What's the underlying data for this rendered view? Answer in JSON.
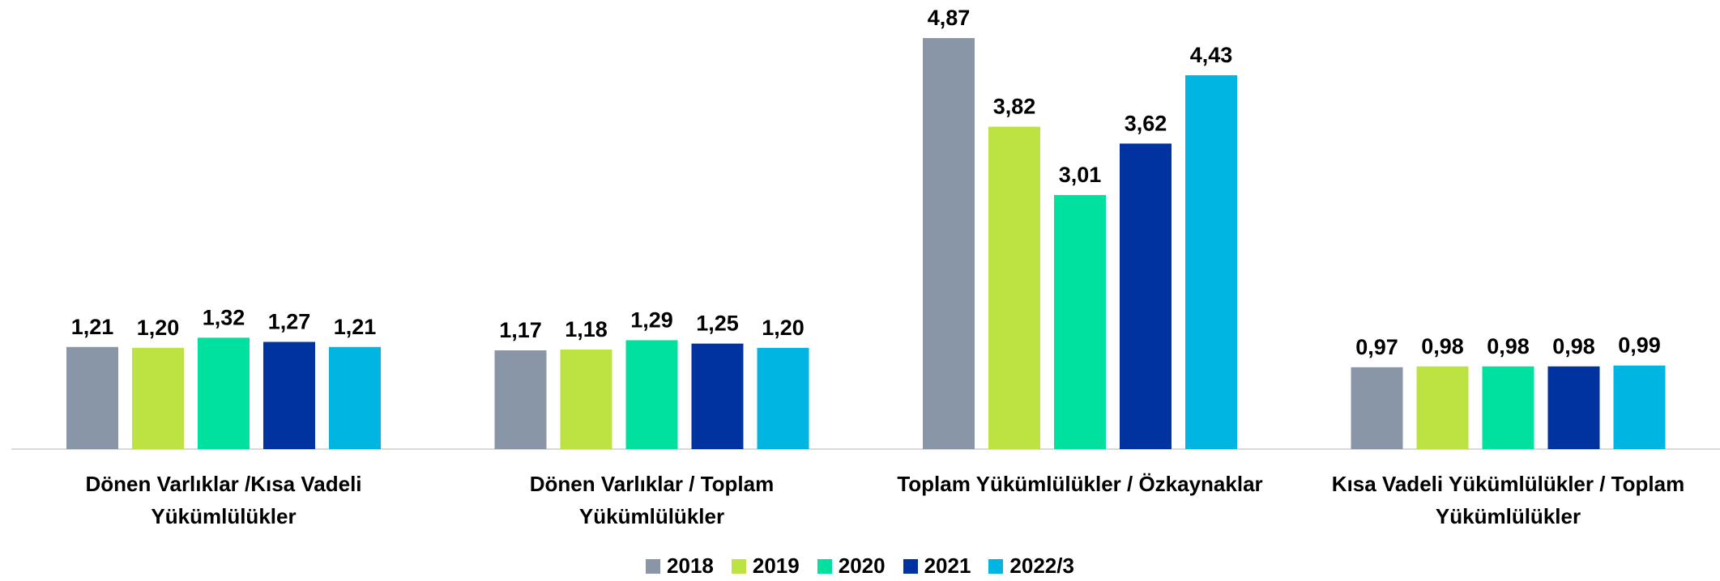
{
  "chart_data": {
    "type": "bar",
    "categories": [
      "Dönen Varlıklar /Kısa Vadeli\nYükümlülükler",
      "Dönen Varlıklar / Toplam\nYükümlülükler",
      "Toplam Yükümlülükler / Özkaynaklar",
      "Kısa Vadeli Yükümlülükler / Toplam\nYükümlülükler"
    ],
    "series": [
      {
        "name": "2018",
        "color": "#8896a8",
        "values": [
          1.21,
          1.17,
          4.87,
          0.97
        ],
        "value_labels": [
          "1,21",
          "1,17",
          "4,87",
          "0,97"
        ]
      },
      {
        "name": "2019",
        "color": "#bde342",
        "values": [
          1.2,
          1.18,
          3.82,
          0.98
        ],
        "value_labels": [
          "1,20",
          "1,18",
          "3,82",
          "0,98"
        ]
      },
      {
        "name": "2020",
        "color": "#00e09e",
        "values": [
          1.32,
          1.29,
          3.01,
          0.98
        ],
        "value_labels": [
          "1,32",
          "1,29",
          "3,01",
          "0,98"
        ]
      },
      {
        "name": "2021",
        "color": "#0033a0",
        "values": [
          1.27,
          1.25,
          3.62,
          0.98
        ],
        "value_labels": [
          "1,27",
          "1,25",
          "3,62",
          "0,98"
        ]
      },
      {
        "name": "2022/3",
        "color": "#00b5e2",
        "values": [
          1.21,
          1.2,
          4.43,
          0.99
        ],
        "value_labels": [
          "1,21",
          "1,20",
          "4,43",
          "0,99"
        ]
      }
    ],
    "ylim": [
      0,
      5.2
    ],
    "legend": "bottom"
  }
}
